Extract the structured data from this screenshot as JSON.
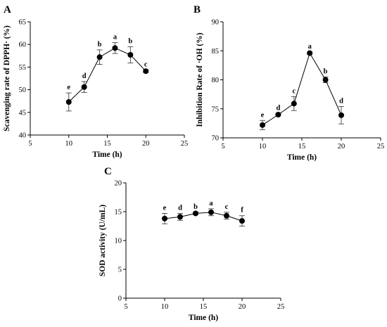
{
  "chart_data": [
    {
      "panel": "A",
      "type": "line",
      "xlabel": "Time (h)",
      "ylabel": "Scavenging rate of DPPH· (%)",
      "xlim": [
        5,
        25
      ],
      "ylim": [
        40,
        65
      ],
      "xticks": [
        5,
        10,
        15,
        20,
        25
      ],
      "yticks": [
        40,
        45,
        50,
        55,
        60,
        65
      ],
      "error_bars": true,
      "series": [
        {
          "x": [
            10,
            12,
            14,
            16,
            18,
            20
          ],
          "y": [
            47.3,
            50.6,
            57.2,
            59.2,
            57.7,
            54.1
          ],
          "err": [
            2.0,
            1.2,
            1.6,
            1.2,
            1.8,
            0.3
          ],
          "labels": [
            "e",
            "d",
            "b",
            "a",
            "b",
            "c"
          ]
        }
      ]
    },
    {
      "panel": "B",
      "type": "line",
      "xlabel": "Time (h)",
      "ylabel": "Inhibition Rate of ·OH (%)",
      "xlim": [
        5,
        25
      ],
      "ylim": [
        70,
        90
      ],
      "xticks": [
        5,
        10,
        15,
        20,
        25
      ],
      "yticks": [
        70,
        75,
        80,
        85,
        90
      ],
      "error_bars": true,
      "series": [
        {
          "x": [
            10,
            12,
            14,
            16,
            18,
            20
          ],
          "y": [
            72.2,
            74.0,
            75.9,
            84.6,
            80.0,
            73.9
          ],
          "err": [
            0.8,
            0.2,
            1.2,
            0.2,
            0.5,
            1.5
          ],
          "labels": [
            "e",
            "d",
            "c",
            "a",
            "b",
            "d"
          ]
        }
      ]
    },
    {
      "panel": "C",
      "type": "line",
      "xlabel": "Time (h)",
      "ylabel": "SOD activity (U/mL)",
      "xlim": [
        5,
        25
      ],
      "ylim": [
        0,
        20
      ],
      "xticks": [
        5,
        10,
        15,
        20,
        25
      ],
      "yticks": [
        0,
        5,
        10,
        15,
        20
      ],
      "error_bars": true,
      "series": [
        {
          "x": [
            10,
            12,
            14,
            16,
            18,
            20
          ],
          "y": [
            13.8,
            14.1,
            14.7,
            14.9,
            14.3,
            13.4
          ],
          "err": [
            0.9,
            0.6,
            0.2,
            0.6,
            0.6,
            0.9
          ],
          "labels": [
            "e",
            "d",
            "b",
            "a",
            "c",
            "f"
          ]
        }
      ]
    }
  ]
}
